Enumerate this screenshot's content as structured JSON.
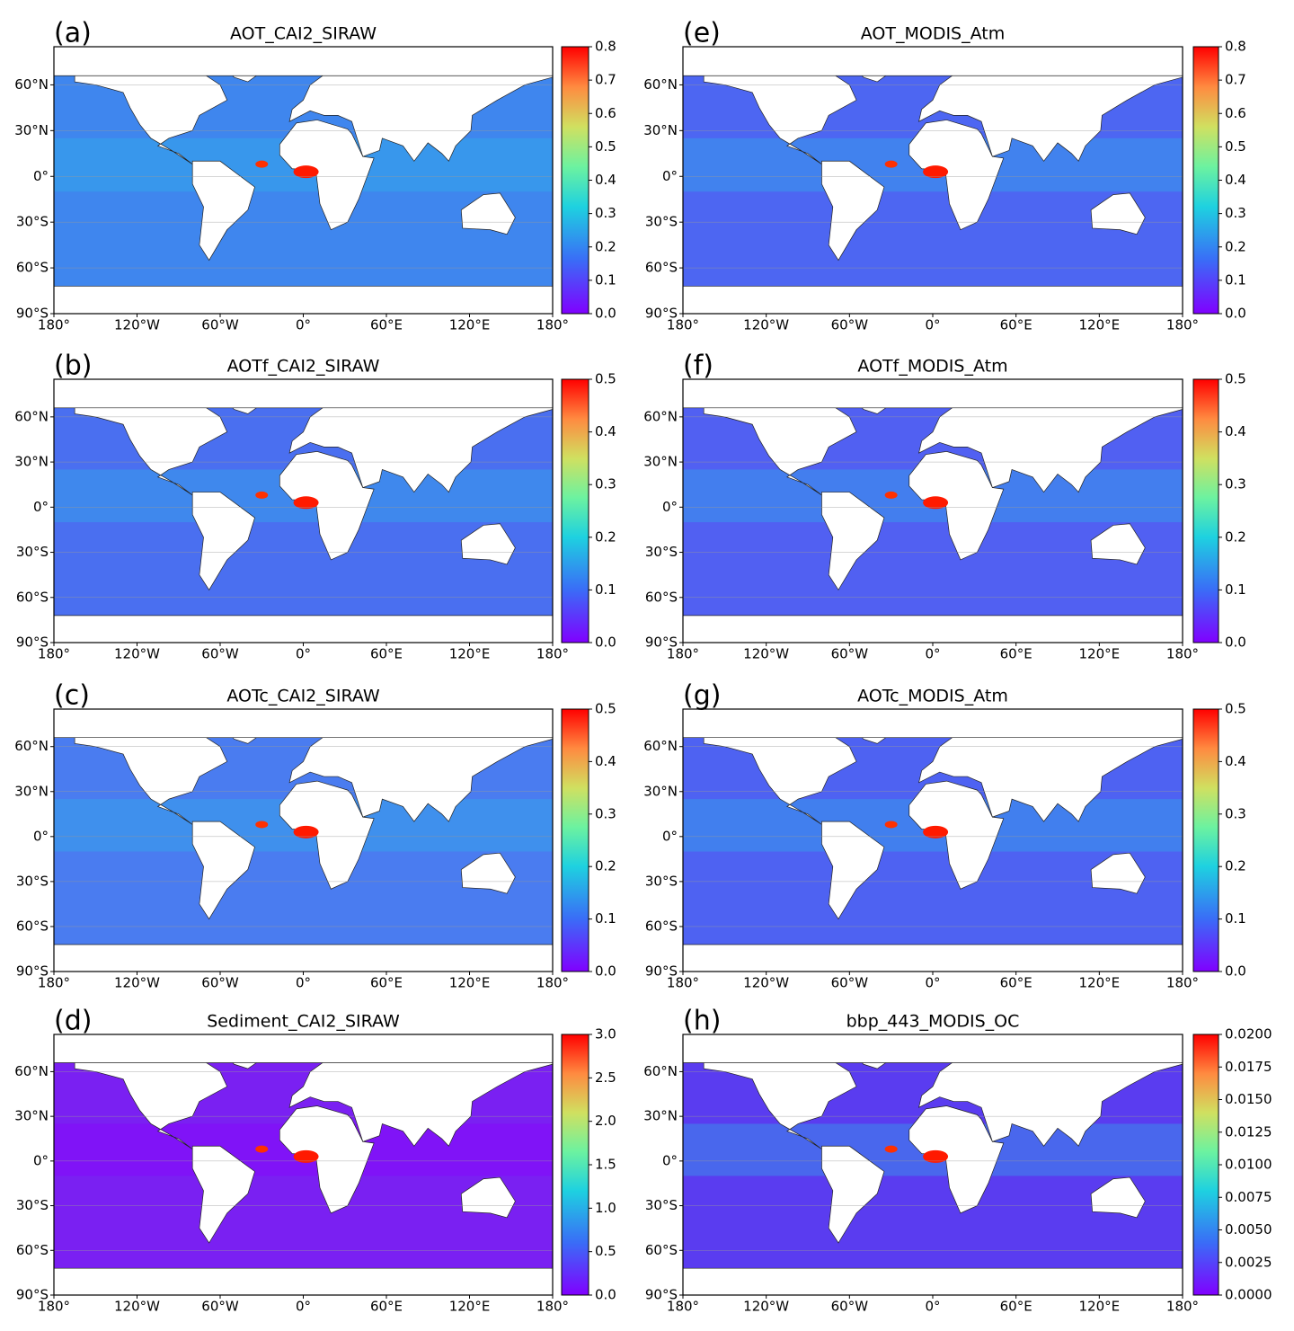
{
  "lat_labels": [
    "60°N",
    "30°N",
    "0°",
    "30°S",
    "60°S",
    "90°S"
  ],
  "lon_labels": [
    "180°",
    "120°W",
    "60°W",
    "0°",
    "60°E",
    "120°E",
    "180°"
  ],
  "panels": [
    {
      "label": "(a)",
      "title": "AOT_CAI2_SIRAW",
      "colorbar_ticks": [
        "0.0",
        "0.1",
        "0.2",
        "0.3",
        "0.4",
        "0.5",
        "0.6",
        "0.7",
        "0.8"
      ]
    },
    {
      "label": "(b)",
      "title": "AOTf_CAI2_SIRAW",
      "colorbar_ticks": [
        "0.0",
        "0.1",
        "0.2",
        "0.3",
        "0.4",
        "0.5"
      ]
    },
    {
      "label": "(c)",
      "title": "AOTc_CAI2_SIRAW",
      "colorbar_ticks": [
        "0.0",
        "0.1",
        "0.2",
        "0.3",
        "0.4",
        "0.5"
      ]
    },
    {
      "label": "(d)",
      "title": "Sediment_CAI2_SIRAW",
      "colorbar_ticks": [
        "0.0",
        "0.5",
        "1.0",
        "1.5",
        "2.0",
        "2.5",
        "3.0"
      ]
    },
    {
      "label": "(e)",
      "title": "AOT_MODIS_Atm",
      "colorbar_ticks": [
        "0.0",
        "0.1",
        "0.2",
        "0.3",
        "0.4",
        "0.5",
        "0.6",
        "0.7",
        "0.8"
      ]
    },
    {
      "label": "(f)",
      "title": "AOTf_MODIS_Atm",
      "colorbar_ticks": [
        "0.0",
        "0.1",
        "0.2",
        "0.3",
        "0.4",
        "0.5"
      ]
    },
    {
      "label": "(g)",
      "title": "AOTc_MODIS_Atm",
      "colorbar_ticks": [
        "0.0",
        "0.1",
        "0.2",
        "0.3",
        "0.4",
        "0.5"
      ]
    },
    {
      "label": "(h)",
      "title": "bbp_443_MODIS_OC",
      "colorbar_ticks": [
        "0.0000",
        "0.0025",
        "0.0050",
        "0.0075",
        "0.0100",
        "0.0125",
        "0.0150",
        "0.0175",
        "0.0200"
      ]
    }
  ]
}
